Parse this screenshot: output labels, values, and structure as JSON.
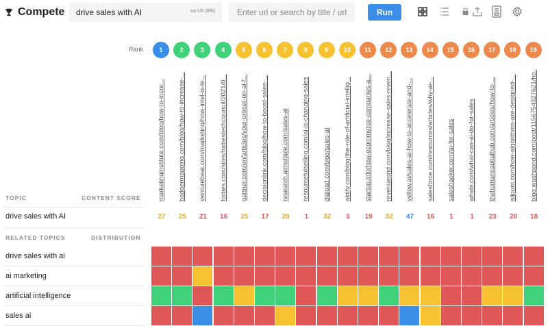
{
  "app": {
    "title": "Compete"
  },
  "search": {
    "query": "drive sales with AI",
    "locale": "US (EN)",
    "url_placeholder": "Enter url or search by title / url",
    "run_label": "Run"
  },
  "icons": [
    "trophy-icon",
    "grid-view-icon",
    "list-view-icon",
    "lock-icon",
    "export-icon",
    "document-icon",
    "settings-icon"
  ],
  "table": {
    "rank_label": "Rank",
    "topic_header": "TOPIC",
    "content_score_header": "CONTENT SCORE",
    "related_topics_header": "RELATED TOPICS",
    "distribution_header": "DISTRIBUTION",
    "main_keyword": "drive sales with AI",
    "ranks": [
      "1",
      "2",
      "3",
      "4",
      "5",
      "6",
      "7",
      "8",
      "9",
      "10",
      "11",
      "12",
      "13",
      "14",
      "15",
      "16",
      "17",
      "18",
      "19"
    ],
    "rank_colors": [
      "#3b8ee8",
      "#3fd27a",
      "#3fd27a",
      "#3fd27a",
      "#f6c232",
      "#f6c232",
      "#f6c232",
      "#f6c232",
      "#f6c232",
      "#f6c232",
      "#ec8a4e",
      "#ec8a4e",
      "#ec8a4e",
      "#ec8a4e",
      "#ec8a4e",
      "#ec8a4e",
      "#ec8a4e",
      "#ec8a4e",
      "#ec8a4e"
    ],
    "urls": [
      "marketinginstitute.com/blog/how-to-incre...",
      "badgermapping.com/blog/how-to-increase-...",
      "venturebeat.com/marketing/how-intel-is-le...",
      "forbes.com/sites/forbestechcouncil/2021/0...",
      "gartner.com/en/articles/your-primer-on-ai-f...",
      "decisionlink.com/blog/how-to-boost-sales-...",
      "research.aimultiple.com/sales-ai",
      "resourcefulselling.com/ai-is-changing-sales",
      "dialpad.com/blog/sales-ai",
      "aktify.com/blog/the-role-of-artificial-intellig...",
      "startup.info/how-ecommerce-companies-a...",
      "revenuegrid.com/blog/increase-sales-reven...",
      "yellow.ai/sales-ai-how-to-accelerate-and-...",
      "salesforce.com/resources/articles/why-ai-...",
      "saleshacker.com/ai-for-sales",
      "whsbi.com/what-can-ai-do-for-sales",
      "thehumancapitalhub.com/articles/how-to-...",
      "alipum.com/how-algorithms-are-designed-...",
      "blog.washpond.com/post/1156754327621/ho..."
    ],
    "scores": [
      "27",
      "25",
      "21",
      "16",
      "25",
      "17",
      "29",
      "1",
      "32",
      "3",
      "19",
      "32",
      "47",
      "16",
      "1",
      "1",
      "23",
      "20",
      "18"
    ],
    "score_colors": [
      "#e8a93a",
      "#e8a93a",
      "#e05757",
      "#e05757",
      "#e8a93a",
      "#e05757",
      "#e8a93a",
      "#e05757",
      "#e8a93a",
      "#e05757",
      "#e05757",
      "#e8a93a",
      "#3b8ee8",
      "#e05757",
      "#e05757",
      "#e05757",
      "#e05757",
      "#e05757",
      "#e05757"
    ],
    "related_topics": [
      {
        "label": "drive sales with ai",
        "cells": [
          "r",
          "r",
          "r",
          "r",
          "r",
          "r",
          "r",
          "r",
          "r",
          "r",
          "r",
          "r",
          "r",
          "r",
          "r",
          "r",
          "r",
          "r",
          "r"
        ]
      },
      {
        "label": "ai marketing",
        "cells": [
          "r",
          "r",
          "y",
          "r",
          "r",
          "r",
          "r",
          "r",
          "r",
          "r",
          "r",
          "r",
          "r",
          "r",
          "r",
          "r",
          "r",
          "r",
          "r"
        ]
      },
      {
        "label": "artificial intelligence",
        "cells": [
          "g",
          "g",
          "r",
          "g",
          "y",
          "g",
          "g",
          "r",
          "g",
          "y",
          "y",
          "g",
          "y",
          "y",
          "r",
          "r",
          "y",
          "y",
          "g"
        ]
      },
      {
        "label": "sales ai",
        "cells": [
          "r",
          "r",
          "b",
          "r",
          "r",
          "r",
          "y",
          "r",
          "r",
          "r",
          "r",
          "r",
          "b",
          "y",
          "r",
          "r",
          "r",
          "r",
          "r"
        ]
      }
    ],
    "cell_colors": {
      "r": "#e05757",
      "y": "#f6c232",
      "g": "#3fd27a",
      "b": "#3b8ee8"
    }
  }
}
